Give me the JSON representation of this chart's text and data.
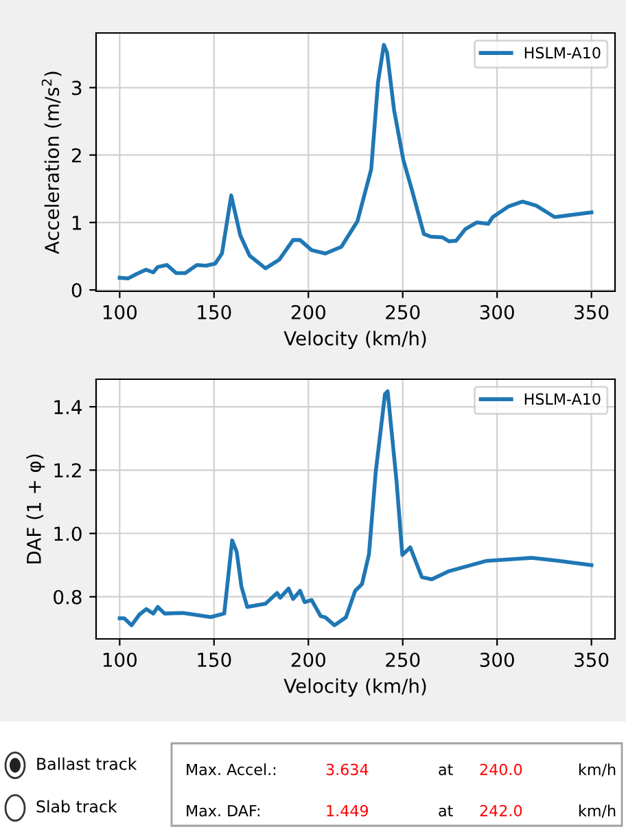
{
  "chart_data": [
    {
      "type": "line",
      "xlabel": "Velocity (km/h)",
      "ylabel": "Acceleration (m/s$^{2}$)",
      "xlim": [
        87.5,
        362.5
      ],
      "ylim": [
        -0.02,
        3.81
      ],
      "xticks": [
        100,
        150,
        200,
        250,
        300,
        350
      ],
      "yticks": [
        0,
        1,
        2,
        3
      ],
      "grid": true,
      "legend": "top right",
      "series": [
        {
          "name": "HSLM-A10",
          "color": "#1f77b4",
          "x": [
            100,
            104.4,
            109.2,
            114,
            117.8,
            120.2,
            125,
            129.9,
            134.8,
            140.9,
            145.7,
            150.6,
            154.2,
            159.1,
            163.9,
            168.8,
            177.3,
            184.6,
            191.9,
            195.6,
            201.7,
            209,
            217.5,
            226,
            233.3,
            236.9,
            240,
            241.7,
            245.4,
            250.3,
            255.1,
            261.2,
            264.9,
            271,
            274.6,
            278.3,
            283.1,
            289.2,
            295.3,
            297.7,
            306.2,
            313.5,
            320.8,
            330.5,
            350
          ],
          "values": [
            0.18,
            0.17,
            0.24,
            0.3,
            0.26,
            0.34,
            0.37,
            0.25,
            0.25,
            0.37,
            0.36,
            0.39,
            0.54,
            1.4,
            0.81,
            0.51,
            0.32,
            0.45,
            0.74,
            0.74,
            0.59,
            0.54,
            0.64,
            1.02,
            1.79,
            3.08,
            3.634,
            3.52,
            2.67,
            1.93,
            1.46,
            0.83,
            0.79,
            0.78,
            0.72,
            0.73,
            0.9,
            1.0,
            0.98,
            1.08,
            1.24,
            1.31,
            1.25,
            1.08,
            1.15
          ]
        }
      ]
    },
    {
      "type": "line",
      "xlabel": "Velocity (km/h)",
      "ylabel": "DAF (1 + φ)",
      "xlim": [
        87.5,
        362.5
      ],
      "ylim": [
        0.667,
        1.487
      ],
      "xticks": [
        100,
        150,
        200,
        250,
        300,
        350
      ],
      "yticks": [
        0.8,
        {
          "value": 1.0,
          "label": "1.0"
        },
        1.2,
        1.4
      ],
      "grid": true,
      "legend": "top right",
      "series": [
        {
          "name": "HSLM-A10",
          "color": "#1f77b4",
          "x": [
            100,
            102.4,
            106.3,
            110.5,
            114.1,
            117.8,
            120.2,
            123.8,
            133.6,
            148.2,
            155.4,
            159.6,
            162,
            164.5,
            167.6,
            177.3,
            183.4,
            185.1,
            189.5,
            191.9,
            195.6,
            198,
            201.7,
            206.5,
            209,
            213.8,
            219.9,
            224.8,
            228.4,
            232.1,
            235.7,
            240.6,
            242,
            246.7,
            249.8,
            254,
            260.1,
            265.4,
            274.6,
            294.1,
            318.4,
            333,
            350
          ],
          "values": [
            0.732,
            0.732,
            0.71,
            0.744,
            0.761,
            0.747,
            0.768,
            0.747,
            0.749,
            0.736,
            0.747,
            0.978,
            0.942,
            0.833,
            0.768,
            0.778,
            0.812,
            0.797,
            0.826,
            0.793,
            0.819,
            0.783,
            0.79,
            0.739,
            0.735,
            0.71,
            0.735,
            0.819,
            0.84,
            0.934,
            1.195,
            1.44,
            1.449,
            1.166,
            0.932,
            0.956,
            0.862,
            0.855,
            0.881,
            0.913,
            0.923,
            0.913,
            0.9
          ]
        }
      ]
    },
    {
      "type": "other",
      "annotations": [
        "Ballast track",
        "Slab track",
        "Max. Accel.:",
        "3.634",
        "at",
        "240.0",
        "km/h",
        "Max. DAF:",
        "1.449",
        "at",
        "242.0",
        "km/h"
      ]
    }
  ]
}
